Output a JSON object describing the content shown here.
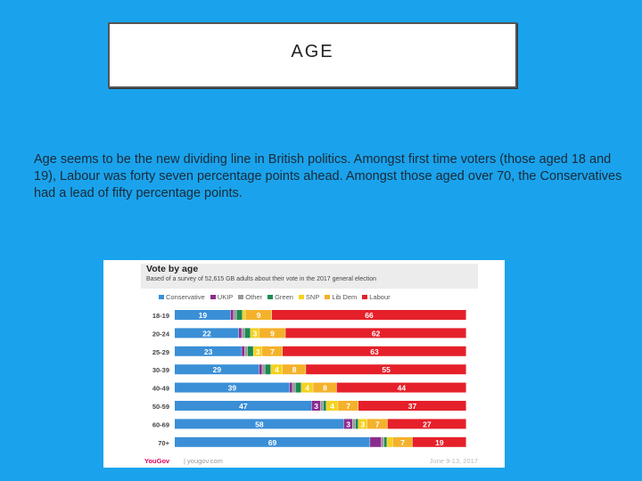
{
  "slide": {
    "title": "AGE",
    "body": "Age seems to be the new dividing line in British politics. Amongst first time voters (those aged 18 and 19), Labour was forty seven percentage points ahead.  Amongst those aged over 70, the Conservatives had a lead of fifty percentage points."
  },
  "chart_header": {
    "title": "Vote by age",
    "subtitle": "Based of a survey of 52,615 GB adults about their vote in the 2017 general election",
    "footer_logo": "YouGov",
    "footer_url": "| yougov.com",
    "footer_date": "June 9-13, 2017"
  },
  "chart_data": {
    "type": "bar",
    "orientation": "horizontal-stacked",
    "title": "Vote by age",
    "subtitle": "Based of a survey of 52,615 GB adults about their vote in the 2017 general election",
    "categories": [
      "18-19",
      "20-24",
      "25-29",
      "30-39",
      "40-49",
      "50-59",
      "60-69",
      "70+"
    ],
    "series": [
      {
        "name": "Conservative",
        "color": "#3a8fd6",
        "values": [
          19,
          22,
          23,
          29,
          39,
          47,
          58,
          69
        ]
      },
      {
        "name": "UKIP",
        "color": "#8a2c8f",
        "values": [
          1,
          1,
          1,
          1,
          1,
          3,
          3,
          4
        ]
      },
      {
        "name": "Other",
        "color": "#9a9a9a",
        "values": [
          1,
          1,
          1,
          1,
          1,
          1,
          1,
          1
        ]
      },
      {
        "name": "Green",
        "color": "#1c8a52",
        "values": [
          2,
          2,
          2,
          2,
          2,
          1,
          1,
          1
        ]
      },
      {
        "name": "SNP",
        "color": "#f5d21f",
        "values": [
          1,
          3,
          3,
          4,
          4,
          4,
          3,
          2
        ]
      },
      {
        "name": "Lib Dem",
        "color": "#f4b12b",
        "values": [
          9,
          9,
          7,
          8,
          8,
          7,
          7,
          7
        ]
      },
      {
        "name": "Labour",
        "color": "#e5202a",
        "values": [
          66,
          62,
          63,
          55,
          44,
          37,
          27,
          19
        ]
      }
    ],
    "data_labels": [
      [
        "19",
        "",
        "",
        "",
        "",
        "9",
        "66"
      ],
      [
        "22",
        "",
        "",
        "",
        "3",
        "9",
        "62"
      ],
      [
        "23",
        "",
        "",
        "",
        "3",
        "7",
        "63"
      ],
      [
        "29",
        "",
        "",
        "",
        "4",
        "8",
        "55"
      ],
      [
        "39",
        "",
        "",
        "",
        "4",
        "8",
        "44"
      ],
      [
        "47",
        "3",
        "",
        "",
        "4",
        "7",
        "37"
      ],
      [
        "58",
        "3",
        "",
        "",
        "3",
        "7",
        "27"
      ],
      [
        "69",
        "",
        "",
        "",
        "",
        "7",
        "19"
      ]
    ],
    "xlim": [
      0,
      100
    ],
    "grid": false,
    "legend": "top"
  }
}
